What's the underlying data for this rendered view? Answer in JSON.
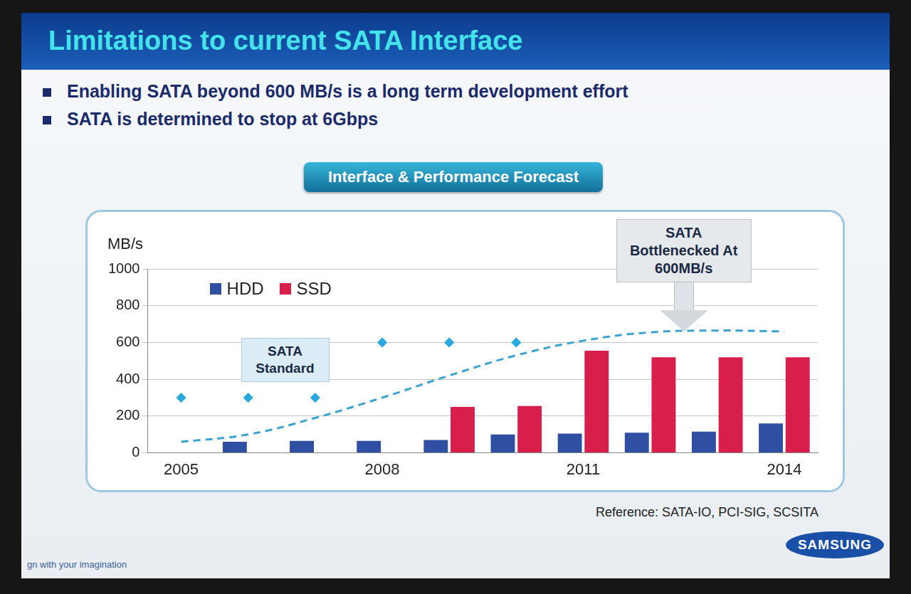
{
  "header": {
    "title": "Limitations to current SATA Interface",
    "bullets": [
      "Enabling SATA beyond 600 MB/s is a long term development effort",
      "SATA is determined to stop at 6Gbps"
    ]
  },
  "chart_data": {
    "type": "bar",
    "title": "Interface & Performance Forecast",
    "ylabel": "MB/s",
    "categories": [
      "2005",
      null,
      null,
      "2008",
      null,
      null,
      "2011",
      null,
      null,
      "2014"
    ],
    "series": [
      {
        "name": "HDD",
        "color": "#2f4fa2",
        "values": [
          null,
          60,
          65,
          65,
          70,
          100,
          105,
          110,
          115,
          160
        ]
      },
      {
        "name": "SSD",
        "color": "#d81f4b",
        "values": [
          null,
          null,
          null,
          null,
          250,
          255,
          555,
          520,
          520,
          520
        ]
      },
      {
        "type": "line",
        "color": "#3ba3d3",
        "line_style": "dashed",
        "marker": "none",
        "values": [
          60,
          100,
          190,
          300,
          420,
          530,
          610,
          655,
          665,
          660
        ]
      },
      {
        "type": "line",
        "color": "#2aa8e0",
        "line_style": "none",
        "marker": "diamond",
        "values": [
          300,
          300,
          300,
          600,
          600,
          600,
          null,
          null,
          null,
          null
        ]
      }
    ],
    "ylim": [
      0,
      1000
    ],
    "yticks": [
      0,
      200,
      400,
      600,
      800,
      1000
    ],
    "grid": true,
    "legend": "upper left",
    "annotations": [
      {
        "text": "SATA Standard"
      },
      {
        "text": "SATA Bottlenecked At 600MB/s"
      }
    ]
  },
  "footer": {
    "reference": "Reference: SATA-IO, PCI-SIG, SCSITA",
    "logo": "SAMSUNG",
    "tagline": "gn with your imagination"
  }
}
